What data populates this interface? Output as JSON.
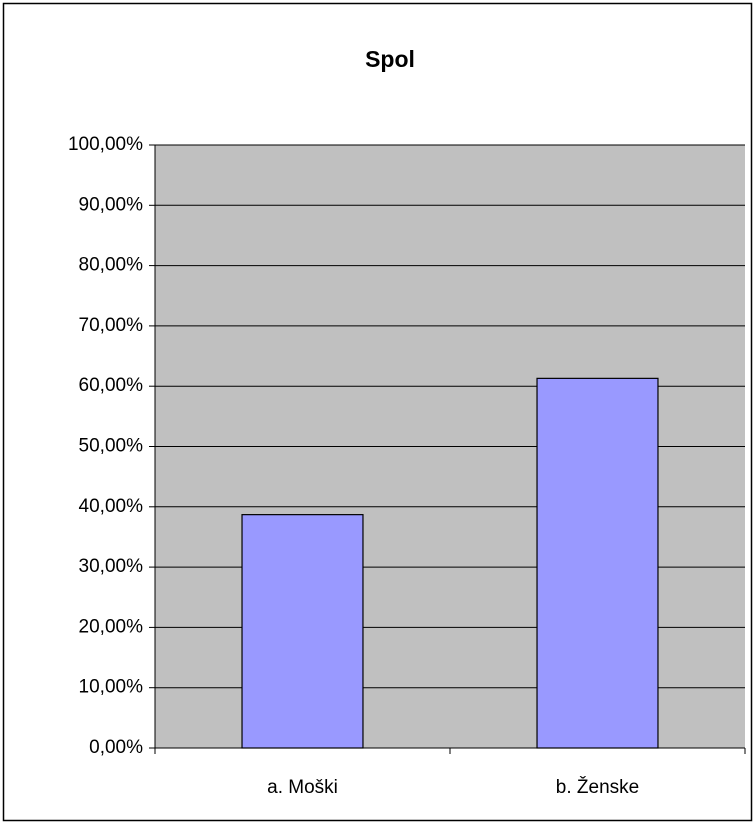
{
  "chart_data": {
    "type": "bar",
    "title": "Spol",
    "categories": [
      "a. Moški",
      "b. Ženske"
    ],
    "values": [
      38.7,
      61.3
    ],
    "color": "#9999ff",
    "ylim": [
      0,
      100
    ],
    "yticks": [
      {
        "value": 0,
        "label": "0,00%"
      },
      {
        "value": 10,
        "label": "10,00%"
      },
      {
        "value": 20,
        "label": "20,00%"
      },
      {
        "value": 30,
        "label": "30,00%"
      },
      {
        "value": 40,
        "label": "40,00%"
      },
      {
        "value": 50,
        "label": "50,00%"
      },
      {
        "value": 60,
        "label": "60,00%"
      },
      {
        "value": 70,
        "label": "70,00%"
      },
      {
        "value": 80,
        "label": "80,00%"
      },
      {
        "value": 90,
        "label": "90,00%"
      },
      {
        "value": 100,
        "label": "100,00%"
      }
    ],
    "grid": true
  }
}
